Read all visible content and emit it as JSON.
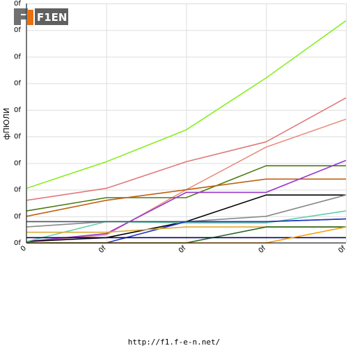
{
  "logo": {
    "text": "F1EN"
  },
  "footer": {
    "url": "http://f1.f-e-n.net/"
  },
  "chart_data": {
    "type": "line",
    "ylabel": "фПЮЛИ",
    "xlabel": "",
    "x_tick_labels": [
      "0",
      "0f",
      "0f",
      "0f",
      "0f"
    ],
    "y_tick_labels": [
      "0f",
      "0f",
      "0f",
      "0f",
      "0f",
      "0f",
      "0f",
      "0f",
      "0f",
      "0f"
    ],
    "x": [
      0,
      1,
      2,
      3,
      4
    ],
    "ylim": [
      0,
      9
    ],
    "grid": true,
    "series": [
      {
        "color": "#88ee22",
        "values": [
          2.05,
          3.05,
          4.25,
          6.2,
          8.35
        ]
      },
      {
        "color": "#e07878",
        "values": [
          1.6,
          2.05,
          3.05,
          3.8,
          5.45
        ]
      },
      {
        "color": "#e89080",
        "values": [
          0.05,
          0.3,
          2.0,
          3.6,
          4.65
        ]
      },
      {
        "color": "#4a7a10",
        "values": [
          1.2,
          1.7,
          1.7,
          2.9,
          2.9
        ]
      },
      {
        "color": "#c06010",
        "values": [
          1.0,
          1.6,
          2.0,
          2.4,
          2.4
        ]
      },
      {
        "color": "#9933cc",
        "values": [
          0.05,
          0.35,
          1.9,
          1.9,
          3.1
        ]
      },
      {
        "color": "#000000",
        "values": [
          0.05,
          0.2,
          0.8,
          1.8,
          1.8
        ]
      },
      {
        "color": "#888888",
        "values": [
          0.6,
          0.8,
          0.8,
          1.0,
          1.8
        ]
      },
      {
        "color": "#66ccaa",
        "values": [
          0.05,
          0.8,
          0.75,
          0.75,
          1.2
        ]
      },
      {
        "color": "#445566",
        "values": [
          0.8,
          0.8,
          0.8,
          0.8,
          0.9
        ]
      },
      {
        "color": "#2233cc",
        "values": [
          0.0,
          0.0,
          0.8,
          0.8,
          0.9
        ]
      },
      {
        "color": "#ddaa33",
        "values": [
          0.4,
          0.4,
          0.6,
          0.6,
          0.6
        ]
      },
      {
        "color": "#226622",
        "values": [
          0.0,
          0.0,
          0.0,
          0.6,
          0.6
        ]
      },
      {
        "color": "#000066",
        "values": [
          0.2,
          0.2,
          0.2,
          0.2,
          0.2
        ]
      },
      {
        "color": "#ff9900",
        "values": [
          0.0,
          0.0,
          0.0,
          0.0,
          0.6
        ]
      }
    ]
  }
}
